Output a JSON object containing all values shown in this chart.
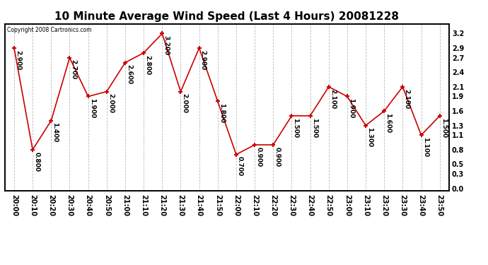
{
  "title": "10 Minute Average Wind Speed (Last 4 Hours) 20081228",
  "copyright": "Copyright 2008 Cartronics.com",
  "x_labels": [
    "20:00",
    "20:10",
    "20:20",
    "20:30",
    "20:40",
    "20:50",
    "21:00",
    "21:10",
    "21:20",
    "21:30",
    "21:40",
    "21:50",
    "22:00",
    "22:10",
    "22:20",
    "22:30",
    "22:40",
    "22:50",
    "23:00",
    "23:10",
    "23:20",
    "23:30",
    "23:40",
    "23:50"
  ],
  "y_values": [
    2.9,
    0.8,
    1.4,
    2.7,
    1.9,
    2.0,
    2.6,
    2.8,
    3.2,
    2.0,
    2.9,
    1.8,
    0.7,
    0.9,
    0.9,
    1.5,
    1.5,
    2.1,
    1.9,
    1.3,
    1.6,
    2.1,
    1.1,
    1.5
  ],
  "y_labels": [
    0.0,
    0.3,
    0.5,
    0.8,
    1.1,
    1.3,
    1.6,
    1.9,
    2.1,
    2.4,
    2.7,
    2.9,
    3.2
  ],
  "line_color": "#cc0000",
  "marker_color": "#cc0000",
  "bg_color": "#ffffff",
  "plot_bg_color": "#ffffff",
  "grid_color": "#aaaaaa",
  "title_fontsize": 11,
  "tick_fontsize": 7,
  "annotation_fontsize": 6.5,
  "ylim_min": -0.05,
  "ylim_max": 3.4
}
